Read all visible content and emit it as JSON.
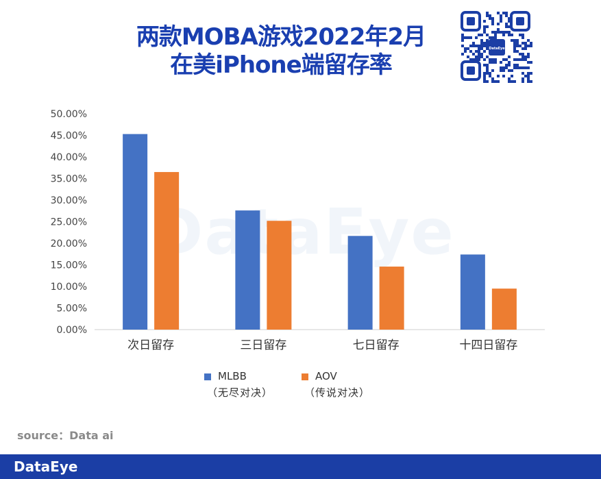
{
  "title": {
    "line1": "两款MOBA游戏2022年2月",
    "line2": "在美iPhone端留存率"
  },
  "watermark": "DataEye",
  "qr_badge": "DataEye",
  "source": "source：Data ai",
  "footer": {
    "brand": "DataEye"
  },
  "colors": {
    "mlbb": "#4472c4",
    "aov": "#ed7d31",
    "title": "#1a3fb0",
    "footer": "#1b3ea5"
  },
  "legend": {
    "mlbb": {
      "name": "MLBB",
      "desc": "（无尽对决）"
    },
    "aov": {
      "name": "AOV",
      "desc": "（传说对决）"
    }
  },
  "chart_data": {
    "type": "bar",
    "categories": [
      "次日留存",
      "三日留存",
      "七日留存",
      "十四日留存"
    ],
    "series": [
      {
        "name": "MLBB",
        "values": [
          45.3,
          27.6,
          21.7,
          17.4
        ]
      },
      {
        "name": "AOV",
        "values": [
          36.5,
          25.2,
          14.6,
          9.5
        ]
      }
    ],
    "ylim": [
      0,
      50
    ],
    "yticks": [
      "0.00%",
      "5.00%",
      "10.00%",
      "15.00%",
      "20.00%",
      "25.00%",
      "30.00%",
      "35.00%",
      "40.00%",
      "45.00%",
      "50.00%"
    ],
    "grid": false,
    "legend_position": "bottom"
  }
}
